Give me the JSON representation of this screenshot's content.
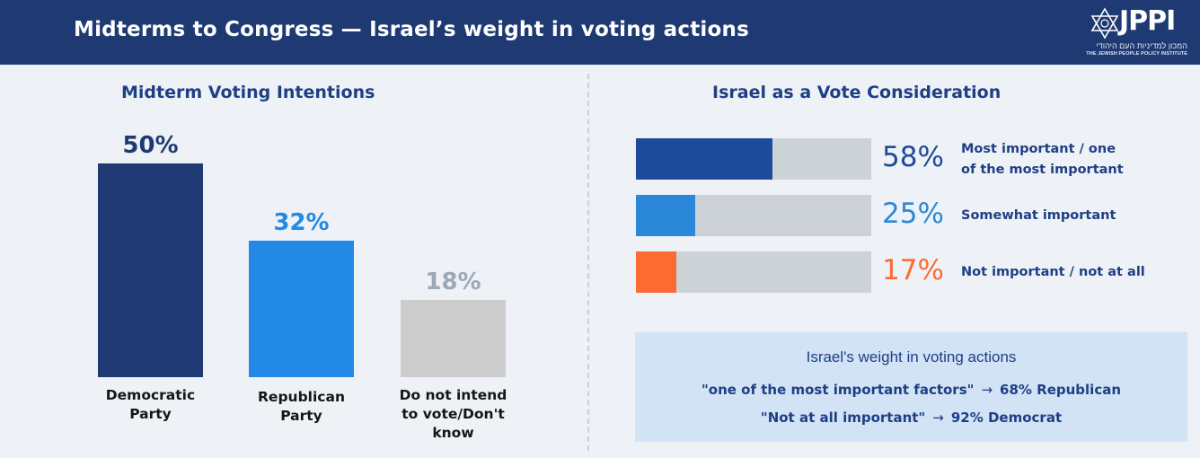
{
  "header": {
    "title": "Midterms to Congress — Israel’s weight in voting actions",
    "logo_text": "JPPI",
    "logo_hebrew": "המכון למדיניות העם היהודי",
    "logo_english": "THE JEWISH PEOPLE POLICY INSTITUTE"
  },
  "colors": {
    "header_bg": "#1f3a73",
    "democratic": "#1f3a73",
    "republican": "#2289e6",
    "undecided": "#cccccc",
    "undecided_text": "#9ea7b5",
    "most_important": "#1e4a9b",
    "somewhat_important": "#2b88d8",
    "not_important": "#fd6a32",
    "track": "#cdd2d7"
  },
  "chart_data": [
    {
      "type": "bar",
      "title": "Midterm Voting Intentions",
      "categories": [
        "Democratic Party",
        "Republican Party",
        "Do not intend to vote/Don't know"
      ],
      "category_lines": [
        [
          "Democratic",
          "Party"
        ],
        [
          "Republican",
          "Party"
        ],
        [
          "Do not intend",
          "to vote/Don't",
          "know"
        ]
      ],
      "values": [
        50,
        32,
        18
      ],
      "value_labels": [
        "50%",
        "32%",
        "18%"
      ],
      "ylim": [
        0,
        50
      ],
      "grid": false,
      "xlabel": "",
      "ylabel": ""
    },
    {
      "type": "bar",
      "orientation": "horizontal",
      "title": "Israel as a  Vote Consideration",
      "categories": [
        "Most important / one of the most important",
        "Somewhat important",
        "Not important / not at all"
      ],
      "category_lines": [
        [
          "Most important / one",
          "of the most important"
        ],
        [
          "Somewhat important"
        ],
        [
          "Not important / not at all"
        ]
      ],
      "values": [
        58,
        25,
        17
      ],
      "value_labels": [
        "58%",
        "25%",
        "17%"
      ],
      "xlim": [
        0,
        100
      ],
      "grid": false
    }
  ],
  "note": {
    "title": "Israel's weight in voting actions",
    "line1_text": "\"one of the most important factors\"",
    "line1_arrow": "→",
    "line1_value": "68% Republican",
    "line2_text": "\"Not at all important\"",
    "line2_arrow": "→",
    "line2_value": "92% Democrat"
  }
}
